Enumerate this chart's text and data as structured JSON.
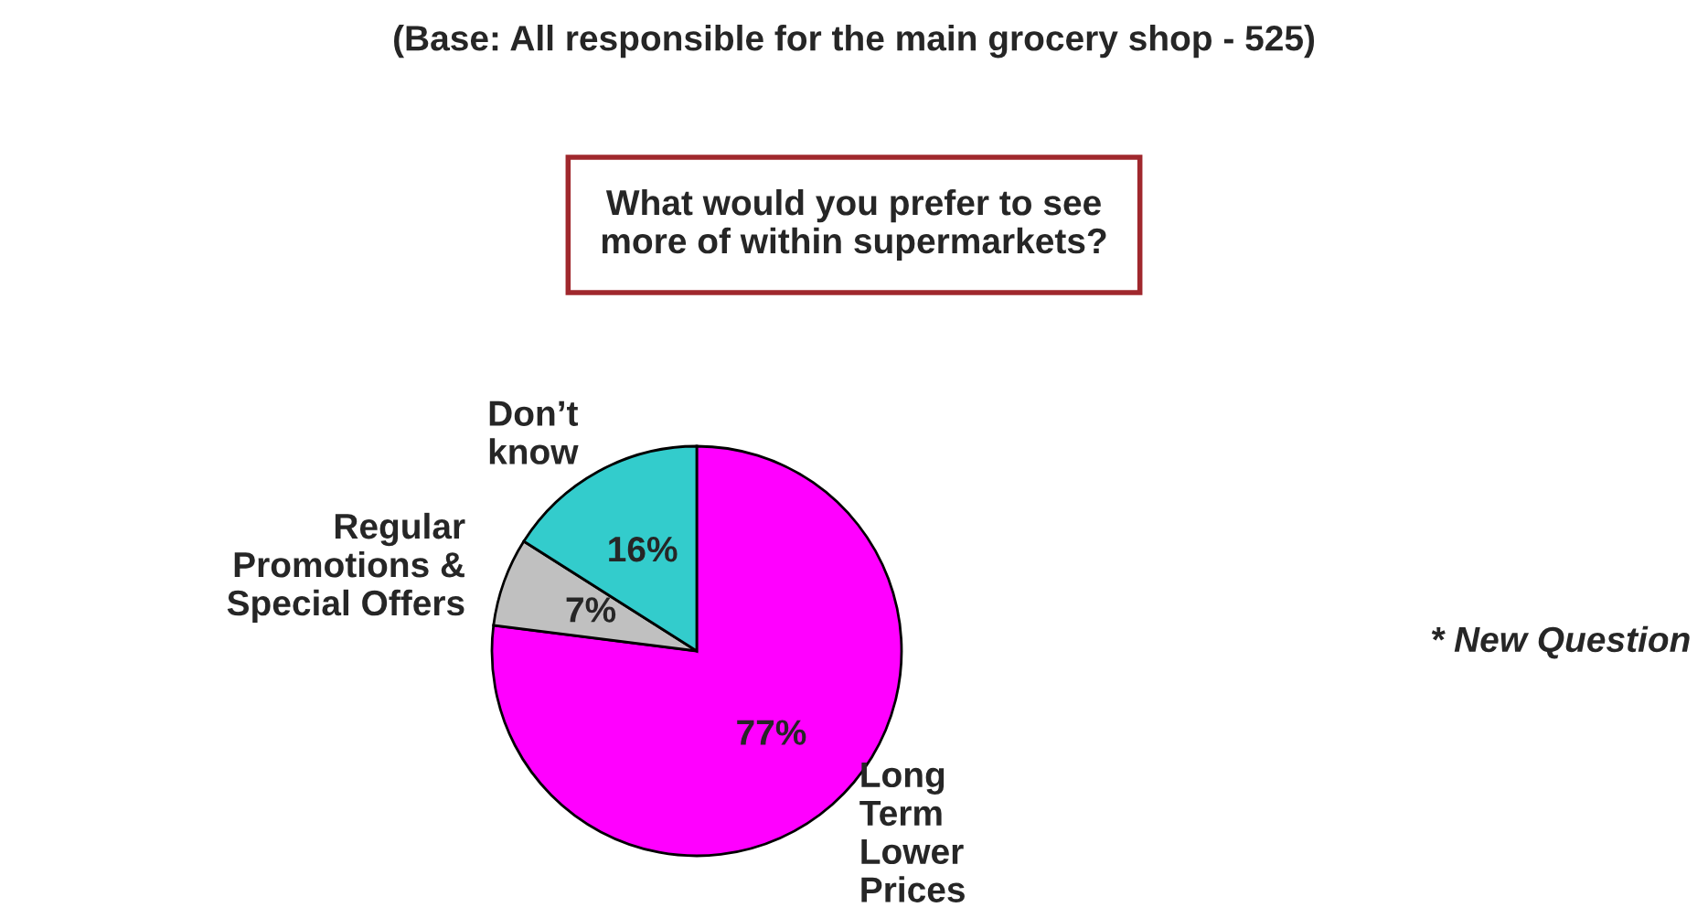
{
  "chart_data": {
    "type": "pie",
    "title": "(Base: All responsible for the main grocery shop - 525)",
    "subtitle": "What would you prefer to see\nmore of within supermarkets?",
    "categories": [
      "Long\nTerm\nLower\nPrices",
      "Regular\nPromotions &\nSpecial Offers",
      "Don’t\nknow"
    ],
    "values": [
      77,
      7,
      16
    ],
    "value_labels": [
      "77%",
      "7%",
      "16%"
    ],
    "colors": [
      "#ff00ff",
      "#c0c0c0",
      "#33cccc"
    ],
    "annotations": [
      "* New Question"
    ]
  }
}
